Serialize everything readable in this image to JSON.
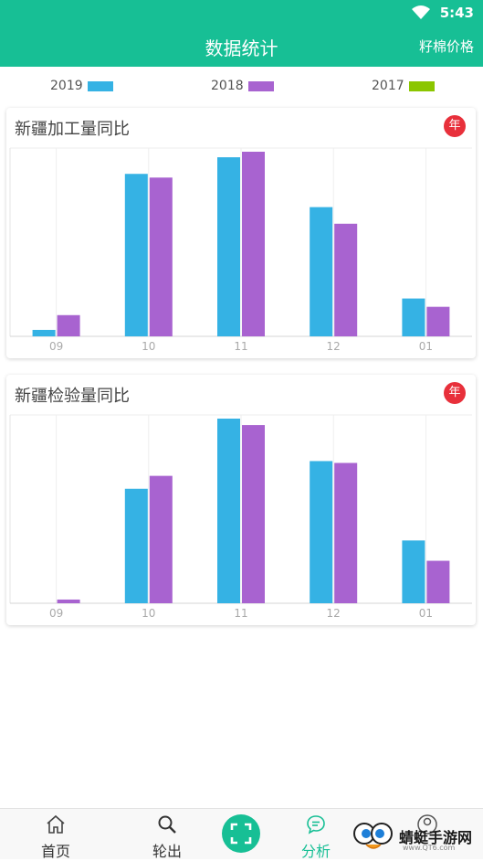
{
  "status_bar": {
    "time": "5:43"
  },
  "header": {
    "title": "数据统计",
    "action": "籽棉价格"
  },
  "legend": [
    {
      "label": "2019",
      "color": "#35b2e4"
    },
    {
      "label": "2018",
      "color": "#a863d0"
    },
    {
      "label": "2017",
      "color": "#8bc600"
    }
  ],
  "cards": [
    {
      "title": "新疆加工量同比",
      "badge": "年"
    },
    {
      "title": "新疆检验量同比",
      "badge": "年"
    }
  ],
  "chart_data": [
    {
      "type": "bar",
      "title": "新疆加工量同比",
      "categories": [
        "09",
        "10",
        "11",
        "12",
        "01"
      ],
      "series": [
        {
          "name": "2019",
          "values": [
            3.5,
            88,
            97,
            70,
            20.5
          ]
        },
        {
          "name": "2018",
          "values": [
            11.5,
            86,
            100,
            61,
            16
          ]
        }
      ],
      "ylim": [
        0,
        100
      ],
      "grid": "vertical"
    },
    {
      "type": "bar",
      "title": "新疆检验量同比",
      "categories": [
        "09",
        "10",
        "11",
        "12",
        "01"
      ],
      "series": [
        {
          "name": "2019",
          "values": [
            0,
            62,
            100,
            77,
            34
          ]
        },
        {
          "name": "2018",
          "values": [
            2,
            69,
            96.5,
            76,
            23
          ]
        }
      ],
      "ylim": [
        0,
        100
      ],
      "grid": "vertical"
    }
  ],
  "bottom_nav": {
    "home": "首页",
    "export": "轮出",
    "analysis": "分析"
  },
  "watermark": {
    "text": "蜻蜓手游网",
    "url": "www.QT6.com"
  }
}
